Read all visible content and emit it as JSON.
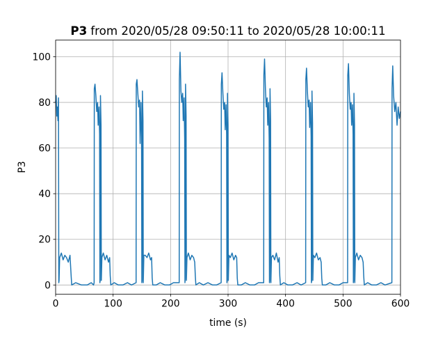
{
  "chart_data": {
    "type": "line",
    "title_bold": "P3",
    "title": "from 2020/05/28 09:50:11 to 2020/05/28 10:00:11",
    "xlabel": "time (s)",
    "ylabel": "P3",
    "color": "#1f77b4",
    "grid": true,
    "xlim": [
      0,
      600
    ],
    "ylim": [
      -4,
      107.3
    ],
    "xticks": [
      0,
      100,
      200,
      300,
      400,
      500,
      600
    ],
    "yticks": [
      0,
      20,
      40,
      60,
      80,
      100
    ],
    "x": [
      0,
      1,
      2,
      3,
      4,
      5,
      5.5,
      6,
      7,
      10,
      13,
      16,
      19,
      22,
      25,
      27,
      28,
      35,
      45,
      55,
      62,
      66,
      67,
      67.3,
      68.5,
      70,
      71.5,
      73,
      74,
      75.5,
      76.5,
      77,
      77.5,
      78,
      79,
      79.5,
      80.5,
      83,
      86,
      89,
      92,
      94,
      95,
      96,
      102,
      109,
      117,
      125,
      132,
      140,
      140.3,
      141.5,
      143,
      144.5,
      146,
      147,
      148.5,
      149.5,
      150,
      150.5,
      151,
      152,
      152.5,
      153.5,
      156,
      159,
      162,
      165,
      167,
      168,
      169,
      175,
      182,
      190,
      198,
      205,
      215,
      215.3,
      216.5,
      218,
      219.5,
      221,
      222,
      223.5,
      224.5,
      225,
      225.5,
      226,
      227,
      227.5,
      228.5,
      231,
      234,
      237,
      240,
      242,
      243,
      244,
      250,
      257,
      265,
      273,
      280,
      288,
      288.3,
      289.5,
      291,
      292.5,
      294,
      295,
      296.5,
      297.5,
      298,
      298.5,
      299,
      300,
      300.5,
      301.5,
      304,
      307,
      310,
      313,
      315,
      316,
      317,
      323,
      330,
      338,
      346,
      353,
      362,
      362.3,
      363.5,
      365,
      366.5,
      368,
      369,
      370.5,
      371.5,
      372,
      372.5,
      373,
      374,
      374.5,
      375.5,
      378,
      381,
      384,
      387,
      389,
      390,
      391,
      397,
      404,
      412,
      420,
      427,
      435,
      435.3,
      436.5,
      438,
      439.5,
      441,
      442,
      443.5,
      444.5,
      445,
      445.5,
      446,
      447,
      447.5,
      448.5,
      451,
      454,
      457,
      460,
      462,
      463,
      464,
      470,
      477,
      485,
      493,
      500,
      508,
      508.3,
      509.5,
      511,
      512.5,
      514,
      515,
      516.5,
      517.5,
      518,
      518.5,
      519,
      520,
      520.5,
      521.5,
      524,
      527,
      530,
      533,
      535,
      536,
      537,
      543,
      550,
      558,
      566,
      573,
      585,
      585.3,
      586.5,
      588,
      590,
      592,
      594,
      596,
      598,
      600
    ],
    "values": [
      80,
      83,
      74,
      78,
      72,
      82,
      1,
      2,
      12,
      14,
      11,
      13,
      12,
      10,
      13,
      4,
      0,
      1,
      0,
      0,
      1,
      0,
      1,
      86,
      88,
      83,
      76,
      80,
      70,
      78,
      66,
      1,
      2,
      83,
      70,
      2,
      12,
      14,
      11,
      13,
      10,
      12,
      4,
      0,
      1,
      0,
      0,
      1,
      0,
      1,
      88,
      90,
      84,
      78,
      81,
      62,
      80,
      65,
      1,
      2,
      85,
      72,
      1,
      13,
      13,
      12,
      14,
      11,
      12,
      3,
      0,
      0,
      1,
      0,
      0,
      1,
      1,
      90,
      102,
      85,
      80,
      84,
      72,
      82,
      64,
      1,
      3,
      88,
      74,
      2,
      12,
      14,
      11,
      13,
      12,
      10,
      4,
      0,
      1,
      0,
      1,
      0,
      0,
      1,
      88,
      93,
      84,
      77,
      80,
      68,
      79,
      66,
      1,
      2,
      84,
      70,
      2,
      13,
      12,
      14,
      11,
      13,
      12,
      3,
      0,
      0,
      1,
      0,
      0,
      1,
      1,
      92,
      99,
      86,
      78,
      82,
      70,
      80,
      64,
      1,
      2,
      86,
      72,
      1,
      12,
      13,
      11,
      14,
      10,
      12,
      4,
      0,
      1,
      0,
      0,
      1,
      0,
      1,
      90,
      95,
      85,
      78,
      81,
      69,
      80,
      65,
      1,
      2,
      85,
      71,
      2,
      13,
      12,
      14,
      11,
      12,
      10,
      3,
      0,
      0,
      1,
      0,
      0,
      1,
      1,
      92,
      97,
      84,
      77,
      80,
      70,
      79,
      66,
      1,
      2,
      84,
      70,
      1,
      12,
      14,
      11,
      13,
      12,
      10,
      4,
      0,
      1,
      0,
      0,
      1,
      0,
      1,
      86,
      96,
      83,
      76,
      80,
      70,
      78,
      73,
      76
    ]
  }
}
